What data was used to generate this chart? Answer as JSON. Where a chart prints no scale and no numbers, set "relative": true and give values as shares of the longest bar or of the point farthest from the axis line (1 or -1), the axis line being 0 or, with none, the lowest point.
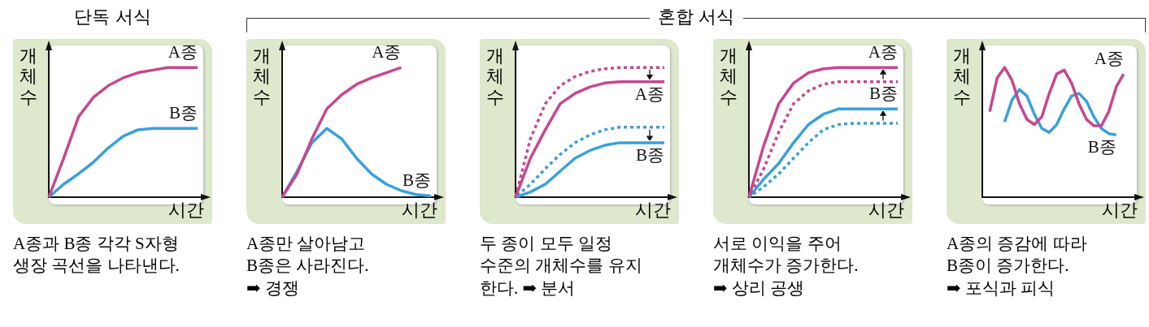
{
  "chart_data": [
    {
      "type": "line",
      "title": "단독 서식",
      "xlabel": "시간",
      "ylabel": "개체수",
      "relative": true,
      "categories": [
        null,
        null,
        null,
        null,
        null,
        null,
        null,
        null,
        null,
        null,
        null
      ],
      "series": [
        {
          "name": "A종",
          "color": "#c8468f",
          "line_style": "solid",
          "values": [
            0,
            0.3,
            0.62,
            0.77,
            0.86,
            0.92,
            0.96,
            0.98,
            1,
            1,
            1
          ]
        },
        {
          "name": "B종",
          "color": "#3aa0d8",
          "line_style": "solid",
          "values": [
            0,
            0.1,
            0.18,
            0.27,
            0.38,
            0.47,
            0.52,
            0.53,
            0.53,
            0.53,
            0.53
          ]
        }
      ],
      "annotations": [
        "A종과 B종 각각 S자형\n생장 곡선을 나타낸다."
      ]
    },
    {
      "type": "line",
      "xlabel": "시간",
      "ylabel": "개체수",
      "relative": true,
      "categories": [
        null,
        null,
        null,
        null,
        null,
        null,
        null,
        null,
        null,
        null,
        null
      ],
      "series": [
        {
          "name": "A종",
          "color": "#c8468f",
          "line_style": "solid",
          "values": [
            0,
            0.18,
            0.45,
            0.68,
            0.79,
            0.87,
            0.92,
            0.96,
            1,
            null,
            null
          ]
        },
        {
          "name": "B종",
          "color": "#3aa0d8",
          "line_style": "solid",
          "values": [
            0,
            0.2,
            0.42,
            0.53,
            0.45,
            0.3,
            0.18,
            0.1,
            0.05,
            0.02,
            0.01
          ]
        }
      ],
      "annotations": [
        "A종만 살아남고\nB종은 사라진다.\n➡ 경쟁"
      ]
    },
    {
      "type": "line",
      "title": "혼합 서식",
      "xlabel": "시간",
      "ylabel": "개체수",
      "relative": true,
      "categories": [
        null,
        null,
        null,
        null,
        null,
        null,
        null,
        null,
        null,
        null,
        null
      ],
      "series": [
        {
          "color": "#c8468f",
          "line_style": "dotted",
          "values": [
            0,
            0.45,
            0.72,
            0.86,
            0.93,
            0.97,
            0.99,
            1,
            1,
            1,
            1
          ]
        },
        {
          "name": "A종",
          "color": "#c8468f",
          "line_style": "solid",
          "values": [
            0,
            0.3,
            0.52,
            0.72,
            0.8,
            0.85,
            0.88,
            0.89,
            0.89,
            0.89,
            0.89
          ]
        },
        {
          "color": "#3aa0d8",
          "line_style": "dotted",
          "values": [
            0,
            0.1,
            0.22,
            0.33,
            0.42,
            0.48,
            0.52,
            0.54,
            0.54,
            0.54,
            0.54
          ]
        },
        {
          "name": "B종",
          "color": "#3aa0d8",
          "line_style": "solid",
          "values": [
            0,
            0.04,
            0.1,
            0.2,
            0.3,
            0.36,
            0.4,
            0.42,
            0.42,
            0.42,
            0.42
          ]
        }
      ],
      "annotations": [
        "두 종이 모두 일정\n수준의 개체수를 유지\n한다. ➡ 분서"
      ]
    },
    {
      "type": "line",
      "xlabel": "시간",
      "ylabel": "개체수",
      "relative": true,
      "categories": [
        null,
        null,
        null,
        null,
        null,
        null,
        null,
        null,
        null,
        null,
        null
      ],
      "series": [
        {
          "name": "A종",
          "color": "#c8468f",
          "line_style": "solid",
          "values": [
            0,
            0.4,
            0.72,
            0.88,
            0.96,
            0.99,
            1,
            1,
            1,
            1,
            1
          ]
        },
        {
          "color": "#c8468f",
          "line_style": "dotted",
          "values": [
            0,
            0.22,
            0.5,
            0.72,
            0.82,
            0.87,
            0.89,
            0.89,
            0.89,
            0.89,
            0.89
          ]
        },
        {
          "name": "B종",
          "color": "#3aa0d8",
          "line_style": "solid",
          "values": [
            0,
            0.14,
            0.26,
            0.42,
            0.56,
            0.64,
            0.68,
            0.68,
            0.68,
            0.68,
            0.68
          ]
        },
        {
          "color": "#3aa0d8",
          "line_style": "dotted",
          "values": [
            0,
            0.08,
            0.18,
            0.3,
            0.42,
            0.52,
            0.56,
            0.57,
            0.57,
            0.57,
            0.57
          ]
        }
      ],
      "annotations": [
        "서로 이익을 주어\n개체수가 증가한다.\n➡ 상리 공생"
      ]
    },
    {
      "type": "line",
      "xlabel": "시간",
      "ylabel": "개체수",
      "relative": true,
      "categories": [
        null,
        null,
        null,
        null,
        null,
        null,
        null,
        null,
        null,
        null,
        null,
        null,
        null,
        null,
        null,
        null,
        null,
        null,
        null,
        null,
        null
      ],
      "series": [
        {
          "name": "A종",
          "color": "#c8468f",
          "line_style": "solid",
          "values": [
            null,
            0.66,
            0.92,
            1,
            0.9,
            0.72,
            0.6,
            0.56,
            0.62,
            0.8,
            0.95,
            0.98,
            0.88,
            0.72,
            0.6,
            0.55,
            0.55,
            0.66,
            0.85,
            0.95,
            null
          ]
        },
        {
          "name": "B종",
          "color": "#3aa0d8",
          "line_style": "solid",
          "values": [
            null,
            null,
            null,
            0.58,
            0.75,
            0.83,
            0.78,
            0.64,
            0.53,
            0.5,
            0.56,
            0.68,
            0.78,
            0.8,
            0.74,
            0.62,
            0.53,
            0.49,
            0.48,
            null,
            null
          ]
        }
      ],
      "annotations": [
        "A종의 증감에 따라\nB종이 증가한다.\n➡ 포식과 피식"
      ]
    }
  ]
}
